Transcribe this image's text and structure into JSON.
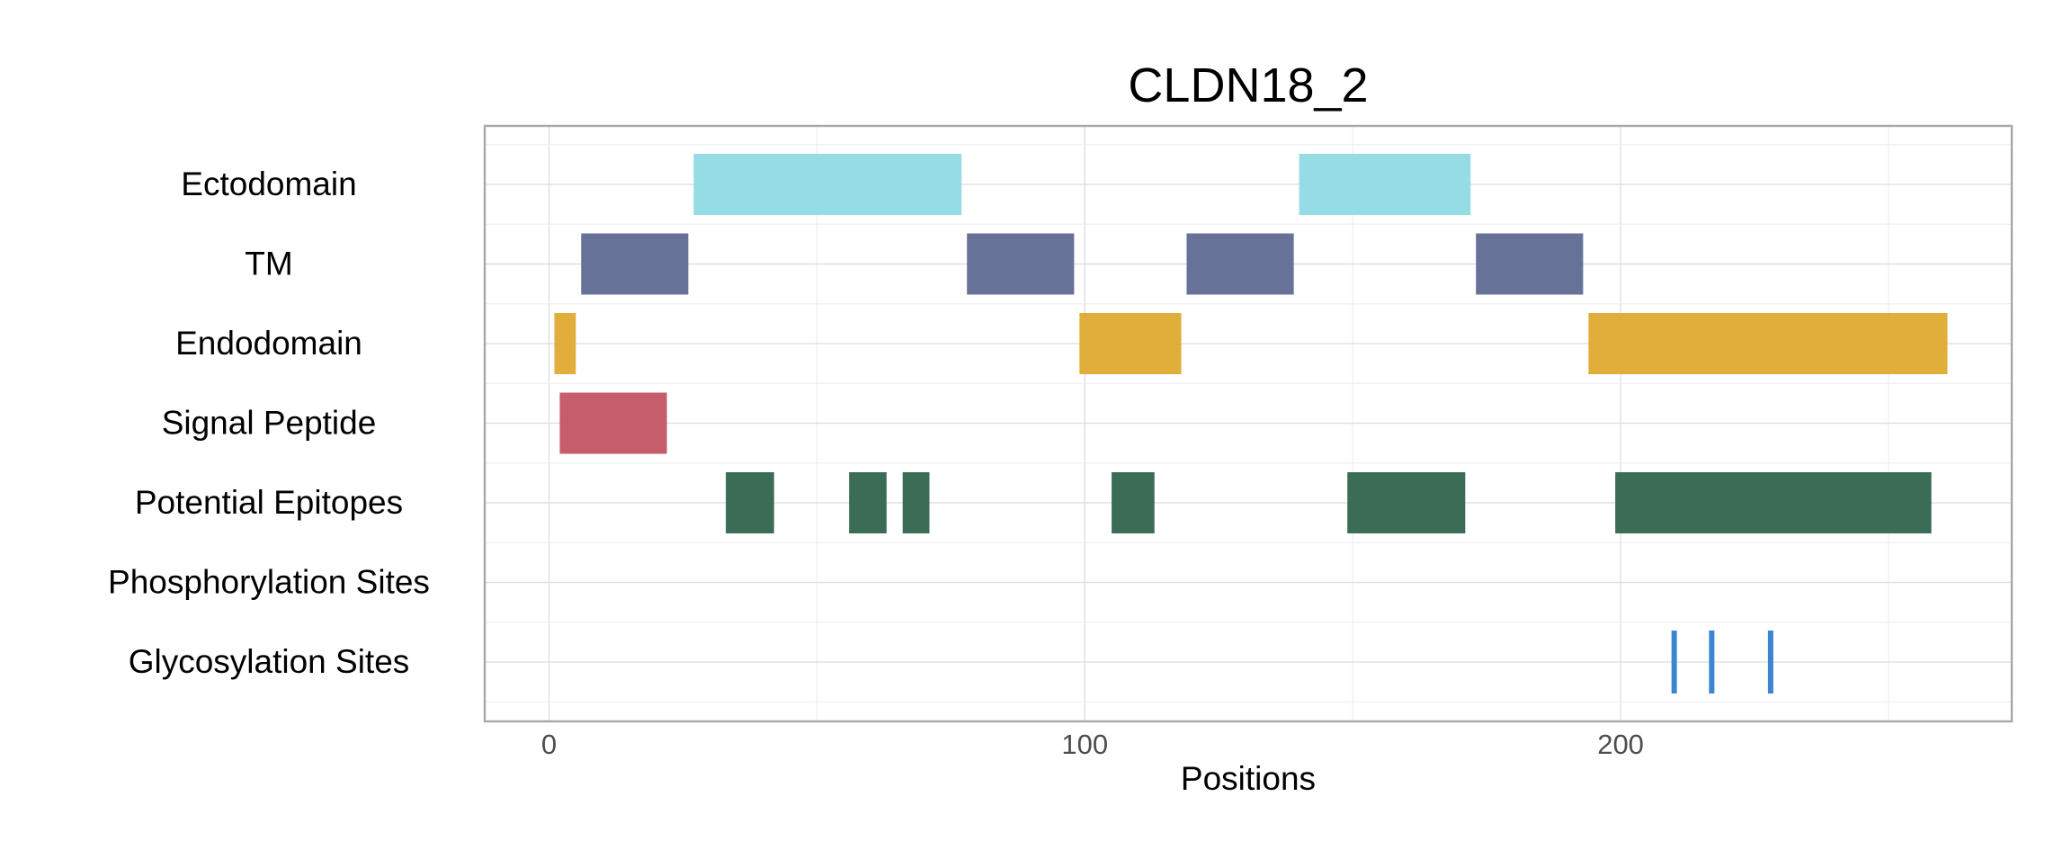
{
  "chart_data": {
    "type": "bar",
    "subtype": "horizontal-range",
    "title": "CLDN18_2",
    "xlabel": "Positions",
    "ylabel": "",
    "xlim": [
      -12,
      273
    ],
    "x_ticks": [
      0,
      100,
      200
    ],
    "grid": true,
    "legend": "none",
    "categories": [
      "Ectodomain",
      "TM",
      "Endodomain",
      "Signal Peptide",
      "Potential Epitopes",
      "Phosphorylation Sites",
      "Glycosylation Sites"
    ],
    "series": [
      {
        "category": "Ectodomain",
        "color": "#8dd9e2",
        "ranges": [
          [
            27,
            77
          ],
          [
            140,
            172
          ]
        ]
      },
      {
        "category": "TM",
        "color": "#5a6690",
        "ranges": [
          [
            6,
            26
          ],
          [
            78,
            98
          ],
          [
            119,
            139
          ],
          [
            173,
            193
          ]
        ]
      },
      {
        "category": "Endodomain",
        "color": "#dea62a",
        "ranges": [
          [
            1,
            5
          ],
          [
            99,
            118
          ],
          [
            194,
            261
          ]
        ]
      },
      {
        "category": "Signal Peptide",
        "color": "#c0505d",
        "ranges": [
          [
            2,
            22
          ]
        ]
      },
      {
        "category": "Potential Epitopes",
        "color": "#295f48",
        "ranges": [
          [
            33,
            42
          ],
          [
            56,
            63
          ],
          [
            66,
            71
          ],
          [
            105,
            113
          ],
          [
            149,
            171
          ],
          [
            199,
            258
          ]
        ]
      },
      {
        "category": "Phosphorylation Sites",
        "color": "#3a86d0",
        "ranges": []
      },
      {
        "category": "Glycosylation Sites",
        "color": "#3a86d0",
        "sites": [
          210,
          217,
          228
        ]
      }
    ]
  }
}
